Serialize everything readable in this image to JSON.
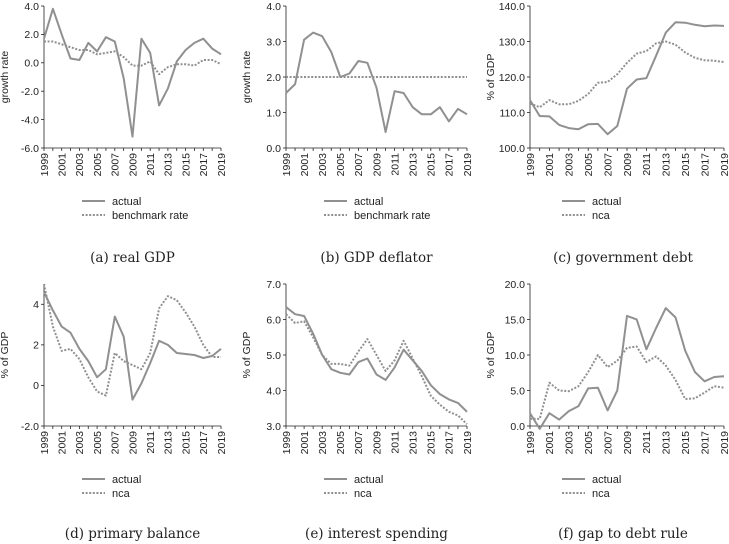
{
  "colors": {
    "series": "#909090",
    "axis": "#222222",
    "text": "#222222"
  },
  "years": [
    1999,
    2000,
    2001,
    2002,
    2003,
    2004,
    2005,
    2006,
    2007,
    2008,
    2009,
    2010,
    2011,
    2012,
    2013,
    2014,
    2015,
    2016,
    2017,
    2018,
    2019
  ],
  "chart_data": [
    {
      "type": "line",
      "id": "a",
      "caption": "(a) real GDP",
      "ylabel": "growth rate",
      "ylim": [
        -6.0,
        4.0
      ],
      "yticks": [
        -6.0,
        -4.0,
        -2.0,
        0.0,
        2.0,
        4.0
      ],
      "ytick_labels": [
        "-6.0",
        "-4.0",
        "-2.0",
        "0.0",
        "2.0",
        "4.0"
      ],
      "xtick_labels": [
        "1999",
        "2001",
        "2003",
        "2005",
        "2007",
        "2009",
        "2011",
        "2013",
        "2015",
        "2017",
        "2019"
      ],
      "series": [
        {
          "name": "actual",
          "style": "solid",
          "values": [
            1.7,
            3.8,
            2.0,
            0.3,
            0.2,
            1.4,
            0.8,
            1.8,
            1.5,
            -1.1,
            -5.2,
            1.7,
            0.7,
            -3.0,
            -1.8,
            0.1,
            0.9,
            1.4,
            1.7,
            1.0,
            0.6
          ]
        },
        {
          "name": "benchmark rate",
          "style": "dotted",
          "values": [
            1.5,
            1.5,
            1.3,
            1.1,
            0.9,
            0.9,
            0.6,
            0.7,
            0.8,
            0.4,
            -0.2,
            -0.2,
            0.1,
            -0.8,
            -0.3,
            -0.1,
            -0.1,
            -0.2,
            0.2,
            0.2,
            -0.1
          ]
        }
      ]
    },
    {
      "type": "line",
      "id": "b",
      "caption": "(b) GDP deflator",
      "ylabel": "growth rate",
      "ylim": [
        0.0,
        4.0
      ],
      "yticks": [
        0.0,
        1.0,
        2.0,
        3.0,
        4.0
      ],
      "ytick_labels": [
        "0.0",
        "1.0",
        "2.0",
        "3.0",
        "4.0"
      ],
      "xtick_labels": [
        "1999",
        "2001",
        "2003",
        "2005",
        "2007",
        "2009",
        "2011",
        "2013",
        "2015",
        "2017",
        "2019"
      ],
      "series": [
        {
          "name": "actual",
          "style": "solid",
          "values": [
            1.55,
            1.8,
            3.05,
            3.25,
            3.15,
            2.7,
            2.0,
            2.1,
            2.45,
            2.4,
            1.7,
            0.45,
            1.6,
            1.55,
            1.15,
            0.95,
            0.95,
            1.15,
            0.75,
            1.1,
            0.95
          ]
        },
        {
          "name": "benchmark rate",
          "style": "dotted",
          "values": [
            2.0,
            2.0,
            2.0,
            2.0,
            2.0,
            2.0,
            2.0,
            2.0,
            2.0,
            2.0,
            2.0,
            2.0,
            2.0,
            2.0,
            2.0,
            2.0,
            2.0,
            2.0,
            2.0,
            2.0,
            2.0
          ]
        }
      ]
    },
    {
      "type": "line",
      "id": "c",
      "caption": "(c) government debt",
      "ylabel": "% of GDP",
      "ylim": [
        100.0,
        140.0
      ],
      "yticks": [
        100.0,
        110.0,
        120.0,
        130.0,
        140.0
      ],
      "ytick_labels": [
        "100.0",
        "110.0",
        "120.0",
        "130.0",
        "140.0"
      ],
      "xtick_labels": [
        "1999",
        "2001",
        "2003",
        "2005",
        "2007",
        "2009",
        "2011",
        "2013",
        "2015",
        "2017",
        "2019"
      ],
      "series": [
        {
          "name": "actual",
          "style": "solid",
          "values": [
            113.5,
            109.0,
            108.9,
            106.5,
            105.6,
            105.3,
            106.7,
            106.8,
            103.9,
            106.2,
            116.7,
            119.3,
            119.7,
            126.0,
            132.5,
            135.4,
            135.3,
            134.7,
            134.3,
            134.5,
            134.4
          ]
        },
        {
          "name": "nca",
          "style": "dotted",
          "values": [
            112.5,
            111.5,
            113.5,
            112.3,
            112.3,
            113.3,
            115.2,
            118.4,
            118.6,
            120.8,
            124.0,
            126.6,
            127.3,
            129.5,
            130.0,
            129.1,
            126.9,
            125.4,
            124.7,
            124.6,
            124.2
          ]
        }
      ]
    },
    {
      "type": "line",
      "id": "d",
      "caption": "(d) primary balance",
      "ylabel": "% of GDP",
      "ylim": [
        -2.0,
        5.0
      ],
      "yticks": [
        -2.0,
        0.0,
        2.0,
        4.0
      ],
      "ytick_labels": [
        "-2.0",
        "0",
        "2",
        "4"
      ],
      "xtick_labels": [
        "1999",
        "2001",
        "2003",
        "2005",
        "2007",
        "2009",
        "2011",
        "2013",
        "2015",
        "2017",
        "2019"
      ],
      "series": [
        {
          "name": "actual",
          "style": "solid",
          "values": [
            4.6,
            3.7,
            2.9,
            2.6,
            1.8,
            1.2,
            0.4,
            0.8,
            3.4,
            2.4,
            -0.7,
            0.1,
            1.1,
            2.2,
            2.0,
            1.6,
            1.55,
            1.5,
            1.35,
            1.45,
            1.8
          ]
        },
        {
          "name": "nca",
          "style": "dotted",
          "values": [
            5.0,
            2.9,
            1.7,
            1.8,
            1.3,
            0.4,
            -0.3,
            -0.5,
            1.6,
            1.2,
            1.0,
            0.8,
            1.6,
            3.8,
            4.4,
            4.2,
            3.6,
            2.9,
            2.0,
            1.4,
            1.4
          ]
        }
      ]
    },
    {
      "type": "line",
      "id": "e",
      "caption": "(e) interest spending",
      "ylabel": "% of GDP",
      "ylim": [
        3.0,
        7.0
      ],
      "yticks": [
        3.0,
        4.0,
        5.0,
        6.0,
        7.0
      ],
      "ytick_labels": [
        "3.0",
        "4.0",
        "5.0",
        "6.0",
        "7.0"
      ],
      "xtick_labels": [
        "1999",
        "2001",
        "2003",
        "2005",
        "2007",
        "2009",
        "2011",
        "2013",
        "2015",
        "2017",
        "2019"
      ],
      "series": [
        {
          "name": "actual",
          "style": "solid",
          "values": [
            6.35,
            6.15,
            6.1,
            5.6,
            5.0,
            4.6,
            4.5,
            4.45,
            4.8,
            4.9,
            4.45,
            4.3,
            4.65,
            5.15,
            4.85,
            4.55,
            4.15,
            3.9,
            3.75,
            3.65,
            3.4
          ]
        },
        {
          "name": "nca",
          "style": "dotted",
          "values": [
            6.15,
            5.9,
            5.95,
            5.5,
            5.0,
            4.75,
            4.75,
            4.7,
            5.1,
            5.45,
            5.0,
            4.55,
            4.85,
            5.4,
            4.9,
            4.4,
            3.85,
            3.6,
            3.4,
            3.3,
            3.05
          ]
        }
      ]
    },
    {
      "type": "line",
      "id": "f",
      "caption": "(f) gap to debt rule",
      "ylabel": "% of GDP",
      "ylim": [
        0.0,
        20.0
      ],
      "yticks": [
        0.0,
        5.0,
        10.0,
        15.0,
        20.0
      ],
      "ytick_labels": [
        "0.0",
        "5.0",
        "10.0",
        "15.0",
        "20.0"
      ],
      "xtick_labels": [
        "1999",
        "2001",
        "2003",
        "2005",
        "2007",
        "2009",
        "2011",
        "2013",
        "2015",
        "2017",
        "2019"
      ],
      "series": [
        {
          "name": "actual",
          "style": "solid",
          "values": [
            1.8,
            -0.4,
            1.8,
            0.9,
            2.1,
            2.8,
            5.3,
            5.4,
            2.2,
            5.0,
            15.5,
            15.0,
            10.8,
            13.8,
            16.6,
            15.3,
            10.6,
            7.6,
            6.3,
            6.9,
            7.0
          ]
        },
        {
          "name": "nca",
          "style": "dotted",
          "values": [
            1.0,
            1.0,
            6.1,
            5.0,
            4.9,
            5.6,
            7.6,
            10.0,
            8.3,
            9.2,
            11.0,
            11.2,
            9.0,
            9.8,
            8.5,
            6.5,
            3.8,
            3.9,
            4.7,
            5.6,
            5.4
          ]
        }
      ]
    }
  ]
}
